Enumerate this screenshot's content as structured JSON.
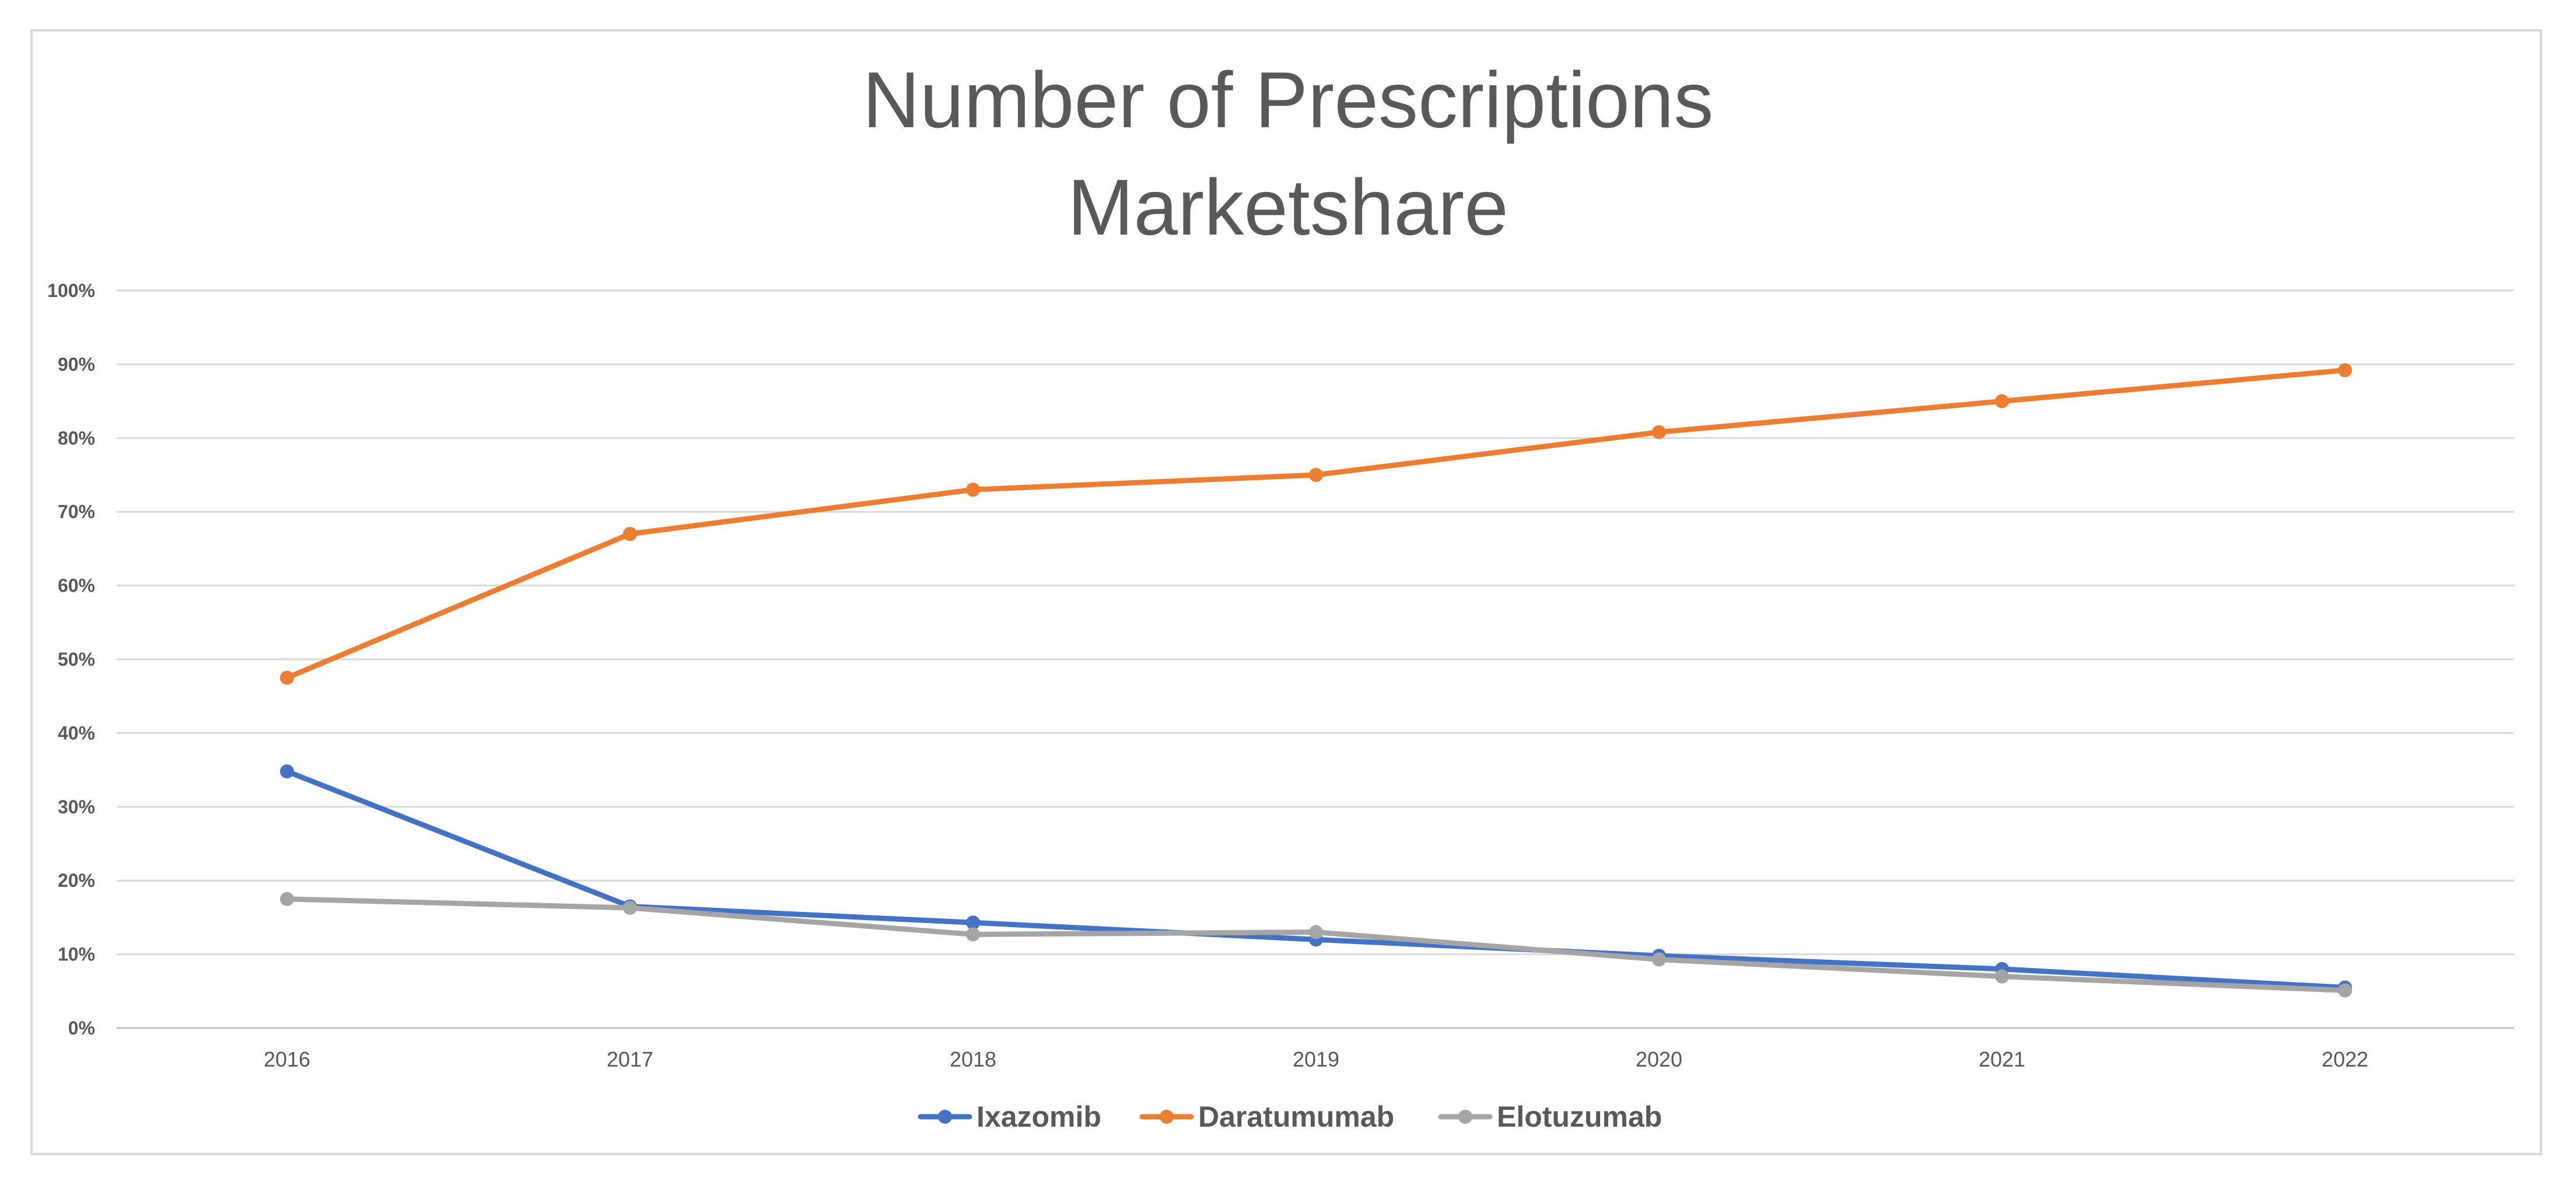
{
  "chart_data": {
    "type": "line",
    "title": [
      "Number of Prescriptions",
      "Marketshare"
    ],
    "xlabel": "",
    "ylabel": "",
    "categories": [
      "2016",
      "2017",
      "2018",
      "2019",
      "2020",
      "2021",
      "2022"
    ],
    "ylim": [
      0,
      100
    ],
    "yticks": [
      "0%",
      "10%",
      "20%",
      "30%",
      "40%",
      "50%",
      "60%",
      "70%",
      "80%",
      "90%",
      "100%"
    ],
    "grid": true,
    "legend_position": "bottom-center",
    "series": [
      {
        "name": "Ixazomib",
        "color": "#4472c4",
        "values": [
          34.8,
          16.5,
          14.3,
          12.0,
          9.8,
          8.0,
          5.5
        ]
      },
      {
        "name": "Daratumumab",
        "color": "#ed7d31",
        "values": [
          47.5,
          67.0,
          73.0,
          75.0,
          80.8,
          85.0,
          89.2
        ]
      },
      {
        "name": "Elotuzumab",
        "color": "#a5a5a5",
        "values": [
          17.5,
          16.3,
          12.7,
          13.0,
          9.3,
          7.0,
          5.1
        ]
      }
    ]
  }
}
